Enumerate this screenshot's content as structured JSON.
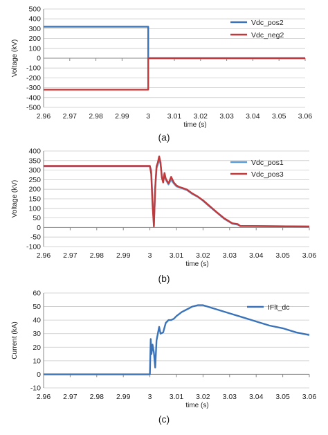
{
  "chart_data": [
    {
      "type": "line",
      "caption": "(a)",
      "xlabel": "time (s)",
      "ylabel": "Voltage (kV)",
      "xlim": [
        2.96,
        3.06
      ],
      "ylim": [
        -500,
        500
      ],
      "xticks": [
        "2.96",
        "2.97",
        "2.98",
        "2.99",
        "3",
        "3.01",
        "3.02",
        "3.03",
        "3.04",
        "3.05",
        "3.06"
      ],
      "yticks": [
        "500",
        "400",
        "300",
        "200",
        "100",
        "0",
        "-100",
        "-200",
        "-300",
        "-400",
        "-500"
      ],
      "grid": "horizontal",
      "legend": "top-right",
      "series": [
        {
          "name": "Vdc_pos2",
          "color": "#3b73b9",
          "x": [
            2.96,
            3.0,
            3.0,
            3.06
          ],
          "y": [
            320,
            320,
            0,
            0
          ]
        },
        {
          "name": "Vdc_neg2",
          "color": "#c0393b",
          "x": [
            2.96,
            3.0,
            3.0,
            3.06
          ],
          "y": [
            -320,
            -320,
            0,
            0
          ]
        }
      ]
    },
    {
      "type": "line",
      "caption": "(b)",
      "xlabel": "time (s)",
      "ylabel": "Voltage (kV)",
      "xlim": [
        2.96,
        3.06
      ],
      "ylim": [
        -100,
        400
      ],
      "xticks": [
        "2.96",
        "2.97",
        "2.98",
        "2.99",
        "3",
        "3.01",
        "3.02",
        "3.03",
        "3.04",
        "3.05",
        "3.06"
      ],
      "yticks": [
        "400",
        "350",
        "300",
        "250",
        "200",
        "150",
        "100",
        "50",
        "0",
        "-50",
        "-100"
      ],
      "grid": "horizontal",
      "legend": "top-right",
      "series": [
        {
          "name": "Vdc_pos1",
          "color": "#5b9bd5",
          "x": [
            2.96,
            3.0,
            3.0005,
            3.001,
            3.0015,
            3.002,
            3.0025,
            3.003,
            3.0035,
            3.004,
            3.0045,
            3.005,
            3.0055,
            3.006,
            3.007,
            3.008,
            3.009,
            3.01,
            3.011,
            3.012,
            3.014,
            3.016,
            3.018,
            3.02,
            3.022,
            3.025,
            3.028,
            3.031,
            3.033,
            3.034,
            3.06
          ],
          "y": [
            320,
            320,
            300,
            150,
            10,
            200,
            310,
            330,
            360,
            330,
            270,
            240,
            280,
            250,
            225,
            250,
            230,
            215,
            210,
            205,
            195,
            175,
            160,
            140,
            115,
            80,
            45,
            20,
            15,
            8,
            5
          ]
        },
        {
          "name": "Vdc_pos3",
          "color": "#c0393b",
          "x": [
            2.96,
            3.0,
            3.0005,
            3.001,
            3.0015,
            3.002,
            3.0025,
            3.003,
            3.0035,
            3.004,
            3.0045,
            3.005,
            3.0055,
            3.006,
            3.007,
            3.008,
            3.009,
            3.01,
            3.011,
            3.012,
            3.014,
            3.016,
            3.018,
            3.02,
            3.022,
            3.025,
            3.028,
            3.031,
            3.033,
            3.034,
            3.06
          ],
          "y": [
            322,
            322,
            280,
            120,
            5,
            210,
            320,
            340,
            372,
            340,
            260,
            235,
            285,
            255,
            230,
            265,
            235,
            220,
            212,
            208,
            198,
            178,
            162,
            142,
            118,
            82,
            48,
            22,
            18,
            8,
            5
          ]
        }
      ]
    },
    {
      "type": "line",
      "caption": "(c)",
      "xlabel": "time (s)",
      "ylabel": "Current (kA)",
      "xlim": [
        2.96,
        3.06
      ],
      "ylim": [
        -10,
        60
      ],
      "xticks": [
        "2.96",
        "2.97",
        "2.98",
        "2.99",
        "3",
        "3.01",
        "3.02",
        "3.03",
        "3.04",
        "3.05",
        "3.06"
      ],
      "yticks": [
        "60",
        "50",
        "40",
        "30",
        "20",
        "10",
        "0",
        "-10"
      ],
      "grid": "horizontal",
      "legend": "top-right",
      "series": [
        {
          "name": "IFlt_dc",
          "color": "#3b73b9",
          "x": [
            2.96,
            3.0,
            3.0003,
            3.0006,
            3.001,
            3.0015,
            3.002,
            3.0025,
            3.003,
            3.0035,
            3.004,
            3.005,
            3.006,
            3.007,
            3.008,
            3.009,
            3.01,
            3.012,
            3.014,
            3.016,
            3.018,
            3.02,
            3.025,
            3.03,
            3.035,
            3.04,
            3.045,
            3.05,
            3.055,
            3.06
          ],
          "y": [
            0,
            0,
            26,
            15,
            22,
            16,
            5,
            25,
            30,
            35,
            30,
            31,
            38,
            40,
            40,
            41,
            43,
            46,
            48,
            50,
            51,
            51,
            48,
            45,
            42,
            39,
            36,
            34,
            31,
            29
          ]
        }
      ]
    }
  ]
}
